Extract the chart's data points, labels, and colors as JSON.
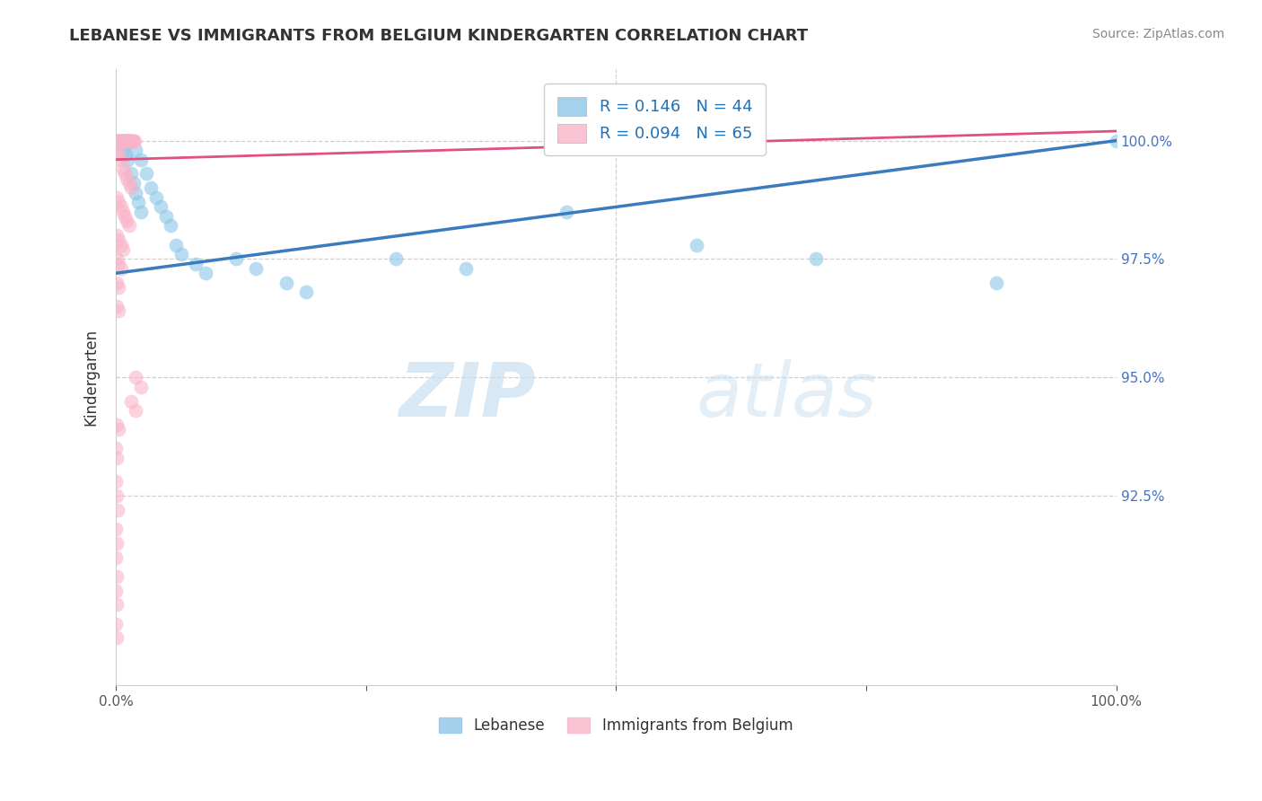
{
  "title": "LEBANESE VS IMMIGRANTS FROM BELGIUM KINDERGARTEN CORRELATION CHART",
  "source": "Source: ZipAtlas.com",
  "ylabel": "Kindergarten",
  "ylabel_right_labels": [
    "100.0%",
    "97.5%",
    "95.0%",
    "92.5%"
  ],
  "ylabel_right_values": [
    1.0,
    0.975,
    0.95,
    0.925
  ],
  "legend_blue_r": "R = ",
  "legend_blue_rval": "0.146",
  "legend_blue_n": "N = 44",
  "legend_pink_r": "R = ",
  "legend_pink_rval": "0.094",
  "legend_pink_n": "N = 65",
  "watermark_zip": "ZIP",
  "watermark_atlas": "atlas",
  "blue_color": "#8dc6e8",
  "pink_color": "#f9b4c8",
  "blue_line_color": "#3a7bbf",
  "pink_line_color": "#e05080",
  "blue_scatter": [
    [
      0.002,
      1.0
    ],
    [
      0.003,
      1.0
    ],
    [
      0.004,
      1.0
    ],
    [
      0.005,
      1.0
    ],
    [
      0.006,
      1.0
    ],
    [
      0.007,
      1.0
    ],
    [
      0.008,
      1.0
    ],
    [
      0.009,
      1.0
    ],
    [
      0.01,
      1.0
    ],
    [
      0.011,
      1.0
    ],
    [
      0.012,
      1.0
    ],
    [
      0.013,
      1.0
    ],
    [
      0.015,
      1.0
    ],
    [
      0.007,
      0.998
    ],
    [
      0.01,
      0.997
    ],
    [
      0.012,
      0.996
    ],
    [
      0.015,
      0.993
    ],
    [
      0.018,
      0.991
    ],
    [
      0.02,
      0.989
    ],
    [
      0.022,
      0.987
    ],
    [
      0.025,
      0.985
    ],
    [
      0.02,
      0.998
    ],
    [
      0.025,
      0.996
    ],
    [
      0.03,
      0.993
    ],
    [
      0.035,
      0.99
    ],
    [
      0.04,
      0.988
    ],
    [
      0.045,
      0.986
    ],
    [
      0.05,
      0.984
    ],
    [
      0.055,
      0.982
    ],
    [
      0.06,
      0.978
    ],
    [
      0.065,
      0.976
    ],
    [
      0.08,
      0.974
    ],
    [
      0.09,
      0.972
    ],
    [
      0.12,
      0.975
    ],
    [
      0.14,
      0.973
    ],
    [
      0.17,
      0.97
    ],
    [
      0.19,
      0.968
    ],
    [
      0.28,
      0.975
    ],
    [
      0.35,
      0.973
    ],
    [
      0.45,
      0.985
    ],
    [
      0.58,
      0.978
    ],
    [
      0.7,
      0.975
    ],
    [
      0.88,
      0.97
    ],
    [
      1.0,
      1.0
    ]
  ],
  "pink_scatter": [
    [
      0.0,
      1.0
    ],
    [
      0.001,
      1.0
    ],
    [
      0.002,
      1.0
    ],
    [
      0.003,
      1.0
    ],
    [
      0.004,
      1.0
    ],
    [
      0.005,
      1.0
    ],
    [
      0.006,
      1.0
    ],
    [
      0.007,
      1.0
    ],
    [
      0.008,
      1.0
    ],
    [
      0.009,
      1.0
    ],
    [
      0.01,
      1.0
    ],
    [
      0.011,
      1.0
    ],
    [
      0.012,
      1.0
    ],
    [
      0.013,
      1.0
    ],
    [
      0.014,
      1.0
    ],
    [
      0.015,
      1.0
    ],
    [
      0.016,
      1.0
    ],
    [
      0.017,
      1.0
    ],
    [
      0.018,
      1.0
    ],
    [
      0.019,
      1.0
    ],
    [
      0.001,
      0.998
    ],
    [
      0.003,
      0.997
    ],
    [
      0.005,
      0.996
    ],
    [
      0.007,
      0.994
    ],
    [
      0.009,
      0.993
    ],
    [
      0.011,
      0.992
    ],
    [
      0.013,
      0.991
    ],
    [
      0.015,
      0.99
    ],
    [
      0.001,
      0.988
    ],
    [
      0.003,
      0.987
    ],
    [
      0.005,
      0.986
    ],
    [
      0.007,
      0.985
    ],
    [
      0.009,
      0.984
    ],
    [
      0.011,
      0.983
    ],
    [
      0.013,
      0.982
    ],
    [
      0.001,
      0.98
    ],
    [
      0.003,
      0.979
    ],
    [
      0.005,
      0.978
    ],
    [
      0.007,
      0.977
    ],
    [
      0.001,
      0.975
    ],
    [
      0.003,
      0.974
    ],
    [
      0.005,
      0.973
    ],
    [
      0.001,
      0.97
    ],
    [
      0.003,
      0.969
    ],
    [
      0.001,
      0.965
    ],
    [
      0.003,
      0.964
    ],
    [
      0.02,
      0.95
    ],
    [
      0.025,
      0.948
    ],
    [
      0.015,
      0.945
    ],
    [
      0.02,
      0.943
    ],
    [
      0.001,
      0.94
    ],
    [
      0.003,
      0.939
    ],
    [
      0.0,
      0.935
    ],
    [
      0.001,
      0.933
    ],
    [
      0.0,
      0.928
    ],
    [
      0.001,
      0.925
    ],
    [
      0.002,
      0.922
    ],
    [
      0.0,
      0.918
    ],
    [
      0.001,
      0.915
    ],
    [
      0.0,
      0.912
    ],
    [
      0.001,
      0.908
    ],
    [
      0.0,
      0.905
    ],
    [
      0.001,
      0.902
    ],
    [
      0.0,
      0.898
    ],
    [
      0.001,
      0.895
    ]
  ],
  "xmin": 0.0,
  "xmax": 1.0,
  "ymin": 0.885,
  "ymax": 1.015,
  "blue_trend": [
    0.0,
    1.0,
    0.972,
    1.0
  ],
  "pink_trend": [
    0.0,
    1.0,
    0.996,
    1.002
  ]
}
